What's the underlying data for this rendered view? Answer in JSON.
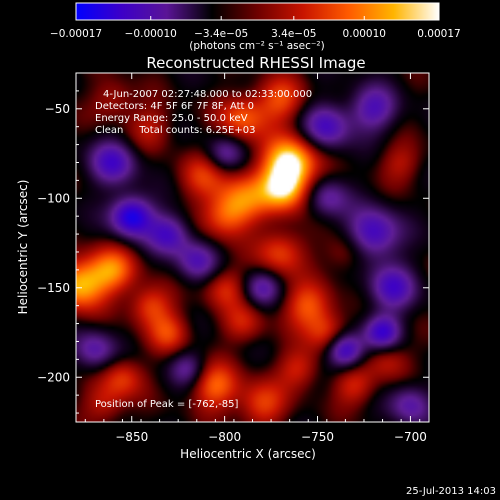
{
  "chart_data": {
    "type": "heatmap",
    "title": "Reconstructed RHESSI Image",
    "xlabel": "Heliocentric X (arcsec)",
    "ylabel": "Heliocentric Y (arcsec)",
    "xlim": [
      -880,
      -690
    ],
    "ylim": [
      -225,
      -30
    ],
    "x_ticks": [
      -850,
      -800,
      -750,
      -700
    ],
    "y_ticks": [
      -50,
      -100,
      -150,
      -200
    ],
    "x_tick_labels": [
      "−850",
      "−800",
      "−750",
      "−700"
    ],
    "y_tick_labels": [
      "−50",
      "−100",
      "−150",
      "−200"
    ],
    "colorbar": {
      "range": [
        -0.00017,
        0.00017
      ],
      "ticks": [
        -0.00017,
        -0.0001,
        -3.4e-05,
        3.4e-05,
        0.0001,
        0.00017
      ],
      "tick_labels": [
        "−0.00017",
        "−0.00010",
        "−3.4e−05",
        "3.4e−05",
        "0.00010",
        "0.00017"
      ],
      "unit_label": "(photons cm⁻² s⁻¹ asec⁻²)",
      "stops": [
        "#0000ff",
        "#3c00c8",
        "#5a1496",
        "#000000",
        "#6e0000",
        "#c81400",
        "#ff5a00",
        "#ffb400",
        "#ffffff"
      ]
    },
    "annotations": {
      "time": "4-Jun-2007 02:27:48.000 to 02:33:00.000",
      "detectors": "Detectors: 4F 5F 6F 7F 8F, Att 0",
      "energy": "Energy Range: 25.0 - 50.0 keV",
      "clean": "Clean     Total counts: 6.25E+03",
      "peak": "Position of Peak = [-762,-85]"
    },
    "footer_date": "25-Jul-2013 14:03",
    "sources": [
      {
        "x": -765,
        "y": -80,
        "v": 1.0,
        "s": 10
      },
      {
        "x": -768,
        "y": -95,
        "v": 0.8,
        "s": 9
      },
      {
        "x": -790,
        "y": -100,
        "v": 0.55,
        "s": 10
      },
      {
        "x": -800,
        "y": -110,
        "v": 0.5,
        "s": 9
      },
      {
        "x": -812,
        "y": -88,
        "v": 0.4,
        "s": 9
      },
      {
        "x": -790,
        "y": -55,
        "v": 0.55,
        "s": 9
      },
      {
        "x": -770,
        "y": -45,
        "v": 0.5,
        "s": 9
      },
      {
        "x": -878,
        "y": -148,
        "v": 0.85,
        "s": 10
      },
      {
        "x": -860,
        "y": -140,
        "v": 0.6,
        "s": 9
      },
      {
        "x": -840,
        "y": -160,
        "v": 0.5,
        "s": 8
      },
      {
        "x": -830,
        "y": -175,
        "v": 0.45,
        "s": 8
      },
      {
        "x": -800,
        "y": -150,
        "v": 0.4,
        "s": 8
      },
      {
        "x": -790,
        "y": -170,
        "v": 0.35,
        "s": 8
      },
      {
        "x": -770,
        "y": -130,
        "v": 0.5,
        "s": 9
      },
      {
        "x": -755,
        "y": -160,
        "v": 0.55,
        "s": 9
      },
      {
        "x": -745,
        "y": -175,
        "v": 0.45,
        "s": 8
      },
      {
        "x": -805,
        "y": -205,
        "v": 0.6,
        "s": 9
      },
      {
        "x": -780,
        "y": -215,
        "v": 0.5,
        "s": 9
      },
      {
        "x": -760,
        "y": -195,
        "v": 0.4,
        "s": 8
      },
      {
        "x": -855,
        "y": -200,
        "v": 0.45,
        "s": 8
      },
      {
        "x": -865,
        "y": -215,
        "v": 0.35,
        "s": 8
      },
      {
        "x": -730,
        "y": -205,
        "v": 0.4,
        "s": 8
      },
      {
        "x": -712,
        "y": -190,
        "v": 0.35,
        "s": 8
      },
      {
        "x": -735,
        "y": -130,
        "v": 0.3,
        "s": 8
      },
      {
        "x": -705,
        "y": -80,
        "v": 0.3,
        "s": 8
      },
      {
        "x": -840,
        "y": -60,
        "v": 0.3,
        "s": 9
      },
      {
        "x": -860,
        "y": -45,
        "v": 0.3,
        "s": 8
      },
      {
        "x": -850,
        "y": -110,
        "v": -0.9,
        "s": 8
      },
      {
        "x": -830,
        "y": -120,
        "v": -0.6,
        "s": 8
      },
      {
        "x": -860,
        "y": -80,
        "v": -0.6,
        "s": 9
      },
      {
        "x": -720,
        "y": -120,
        "v": -0.7,
        "s": 10
      },
      {
        "x": -710,
        "y": -150,
        "v": -0.6,
        "s": 9
      },
      {
        "x": -735,
        "y": -185,
        "v": -0.8,
        "s": 7
      },
      {
        "x": -715,
        "y": -175,
        "v": -0.7,
        "s": 7
      },
      {
        "x": -745,
        "y": -60,
        "v": -0.6,
        "s": 9
      },
      {
        "x": -720,
        "y": -50,
        "v": -0.55,
        "s": 9
      },
      {
        "x": -815,
        "y": -135,
        "v": -0.5,
        "s": 8
      },
      {
        "x": -780,
        "y": -150,
        "v": -0.45,
        "s": 7
      },
      {
        "x": -870,
        "y": -185,
        "v": -0.5,
        "s": 8
      },
      {
        "x": -820,
        "y": -195,
        "v": -0.4,
        "s": 7
      },
      {
        "x": -700,
        "y": -215,
        "v": -0.5,
        "s": 8
      },
      {
        "x": -745,
        "y": -100,
        "v": -0.45,
        "s": 8
      },
      {
        "x": -800,
        "y": -75,
        "v": -0.4,
        "s": 7
      }
    ]
  }
}
